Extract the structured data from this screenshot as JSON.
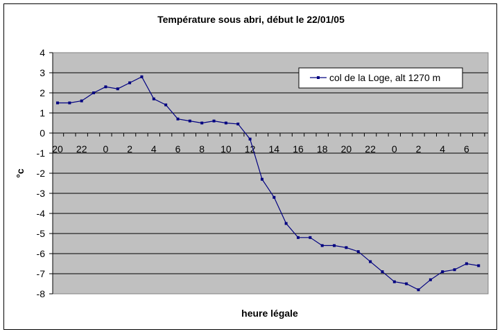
{
  "chart_data": {
    "type": "line",
    "title": "Température sous abri, début le 22/01/05",
    "xlabel": "heure légale",
    "ylabel": "°c",
    "ylim": [
      -8,
      4
    ],
    "yticks": [
      "4",
      "3",
      "2",
      "1",
      "0",
      "-1",
      "-2",
      "-3",
      "-4",
      "-5",
      "-6",
      "-7",
      "-8"
    ],
    "xtick_labels": [
      "20",
      "22",
      "0",
      "2",
      "4",
      "6",
      "8",
      "10",
      "12",
      "14",
      "16",
      "18",
      "20",
      "22",
      "0",
      "2",
      "4",
      "6"
    ],
    "grid": true,
    "legend_position": "top-right",
    "series": [
      {
        "name": "col de la Loge, alt 1270 m",
        "color": "#000080",
        "x": [
          "20",
          "21",
          "22",
          "23",
          "0",
          "1",
          "2",
          "3",
          "4",
          "5",
          "6",
          "7",
          "8",
          "9",
          "10",
          "11",
          "12",
          "13",
          "14",
          "15",
          "16",
          "17",
          "18",
          "19",
          "20",
          "21",
          "22",
          "23",
          "0",
          "1",
          "2",
          "3",
          "4",
          "5",
          "6",
          "7"
        ],
        "values": [
          1.5,
          1.5,
          1.6,
          2.0,
          2.3,
          2.2,
          2.5,
          2.8,
          1.7,
          1.4,
          0.7,
          0.6,
          0.5,
          0.6,
          0.5,
          0.45,
          -0.3,
          -2.3,
          -3.2,
          -4.5,
          -5.2,
          -5.2,
          -5.6,
          -5.6,
          -5.7,
          -5.9,
          -6.4,
          -6.9,
          -7.4,
          -7.5,
          -7.8,
          -7.3,
          -6.9,
          -6.8,
          -6.5,
          -6.6
        ]
      }
    ]
  },
  "colors": {
    "plot_background": "#c0c0c0",
    "gridline": "#000000",
    "series_line": "#000080"
  }
}
